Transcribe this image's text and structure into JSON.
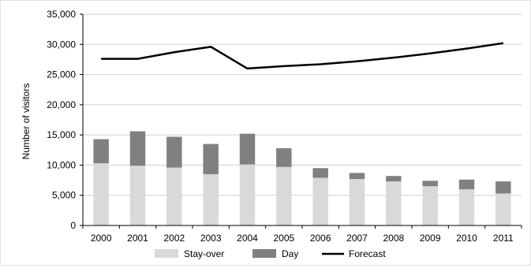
{
  "chart_data": {
    "type": "bar",
    "title": "",
    "xlabel": "",
    "ylabel": "Number of visitors",
    "ylim": [
      0,
      35000
    ],
    "yticks": [
      0,
      5000,
      10000,
      15000,
      20000,
      25000,
      30000,
      35000
    ],
    "ytick_labels": [
      "0",
      "5,000",
      "10,000",
      "15,000",
      "20,000",
      "25,000",
      "30,000",
      "35,000"
    ],
    "grid": true,
    "legend_position": "bottom",
    "categories": [
      "2000",
      "2001",
      "2002",
      "2003",
      "2004",
      "2005",
      "2006",
      "2007",
      "2008",
      "2009",
      "2010",
      "2011"
    ],
    "series": [
      {
        "name": "Stay-over",
        "type": "stacked-bar",
        "color": "#d9d9d9",
        "values": [
          10300,
          9900,
          9600,
          8500,
          10100,
          9700,
          7900,
          7700,
          7300,
          6500,
          6000,
          5300
        ]
      },
      {
        "name": "Day",
        "type": "stacked-bar",
        "color": "#808080",
        "values": [
          4000,
          5700,
          5100,
          5000,
          5100,
          3100,
          1600,
          1000,
          900,
          900,
          1600,
          2000
        ]
      },
      {
        "name": "Forecast",
        "type": "line",
        "color": "#000000",
        "values": [
          27600,
          27600,
          28700,
          29600,
          26000,
          26400,
          26700,
          27200,
          27800,
          28500,
          29300,
          30200
        ]
      }
    ]
  }
}
